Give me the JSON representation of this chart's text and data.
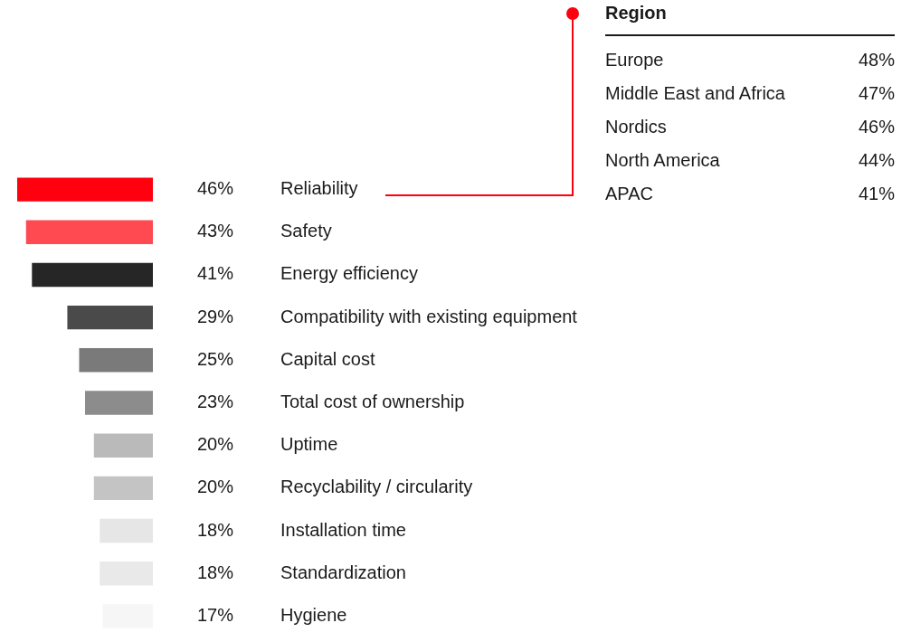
{
  "chart_data": {
    "type": "bar",
    "orientation": "horizontal",
    "categories": [
      "Reliability",
      "Safety",
      "Energy efficiency",
      "Compatibility with existing equipment",
      "Capital cost",
      "Total cost of ownership",
      "Uptime",
      "Recyclability / circularity",
      "Installation time",
      "Standardization",
      "Hygiene"
    ],
    "values": [
      46,
      43,
      41,
      29,
      25,
      23,
      20,
      20,
      18,
      18,
      17
    ],
    "value_labels": [
      "46%",
      "43%",
      "41%",
      "29%",
      "25%",
      "23%",
      "20%",
      "20%",
      "18%",
      "18%",
      "17%"
    ],
    "colors": [
      "#ff000f",
      "#ff4a52",
      "#262626",
      "#4a4a4a",
      "#7a7a7a",
      "#8c8c8c",
      "#bababa",
      "#c4c4c4",
      "#e6e6e6",
      "#e9e9e9",
      "#f6f6f6"
    ],
    "annotations": [
      "Region",
      "Europe",
      "48%",
      "Middle East and Africa",
      "47%",
      "Nordics",
      "46%",
      "North America",
      "44%",
      "APAC",
      "41%"
    ],
    "legend": false
  }
}
